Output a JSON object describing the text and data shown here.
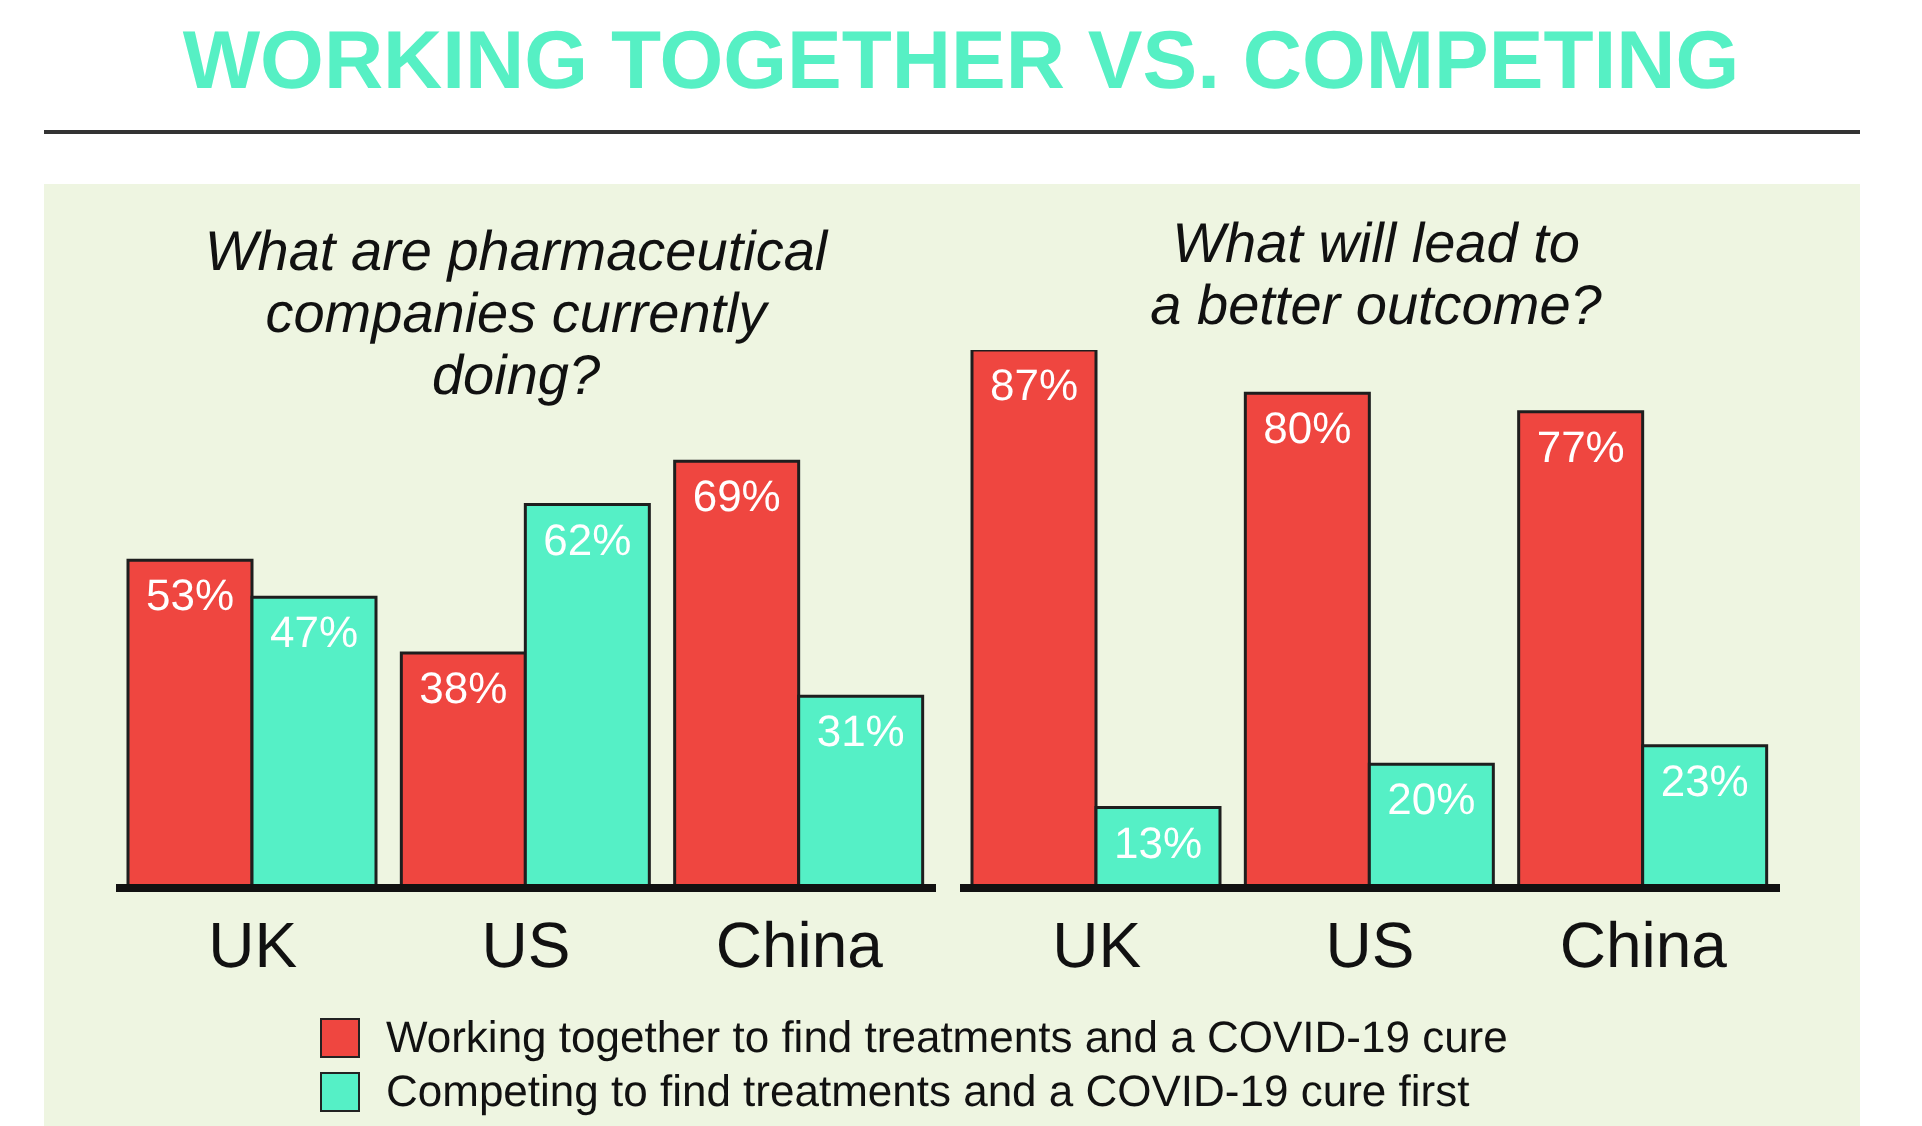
{
  "chart_data": [
    {
      "type": "bar",
      "title": "WORKING TOGETHER VS. COMPETING",
      "subtitle": "What are pharmaceutical companies currently doing?",
      "categories": [
        "UK",
        "US",
        "China"
      ],
      "series": [
        {
          "name": "Working together to find treatments and a COVID-19 cure",
          "color": "#ef4640",
          "values": [
            53,
            38,
            69
          ],
          "value_labels": [
            "53%",
            "38%",
            "69%"
          ]
        },
        {
          "name": "Competing to find treatments and a COVID-19 cure first",
          "color": "#55f0c6",
          "values": [
            47,
            62,
            31
          ],
          "value_labels": [
            "47%",
            "62%",
            "31%"
          ]
        }
      ],
      "legend": "bottom"
    },
    {
      "type": "bar",
      "subtitle": "What will lead to a better outcome?",
      "categories": [
        "UK",
        "US",
        "China"
      ],
      "series": [
        {
          "color": "#ef4640",
          "values": [
            87,
            80,
            77
          ],
          "value_labels": [
            "87%",
            "80%",
            "77%"
          ]
        },
        {
          "color": "#55f0c6",
          "values": [
            13,
            20,
            23
          ],
          "value_labels": [
            "13%",
            "20%",
            "23%"
          ]
        }
      ]
    }
  ]
}
